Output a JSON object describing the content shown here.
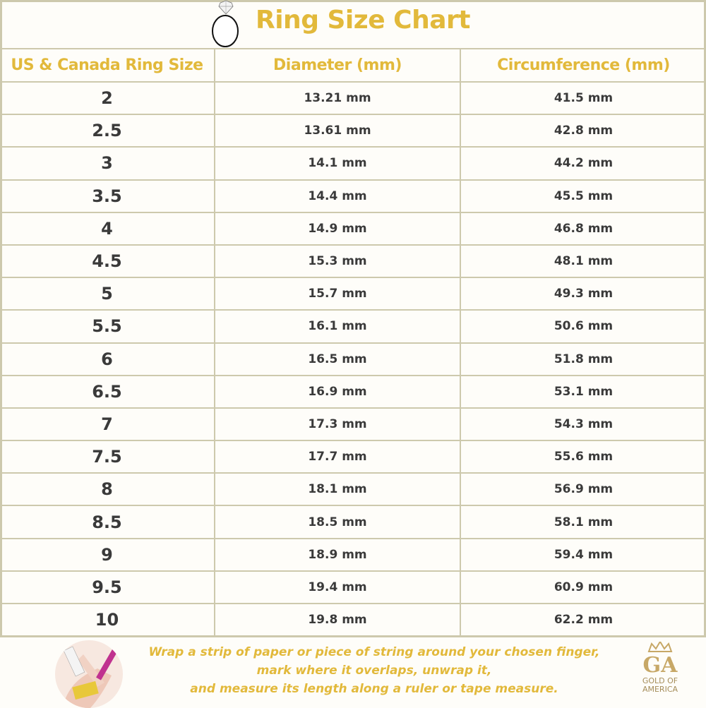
{
  "header": {
    "title": "Ring Size Chart",
    "icon": "ring-with-diamond-icon"
  },
  "table": {
    "columns": [
      "US & Canada Ring Size",
      "Diameter (mm)",
      "Circumference (mm)"
    ],
    "rows": [
      [
        "2",
        "13.21 mm",
        "41.5 mm"
      ],
      [
        "2.5",
        "13.61 mm",
        "42.8 mm"
      ],
      [
        "3",
        "14.1 mm",
        "44.2 mm"
      ],
      [
        "3.5",
        "14.4 mm",
        "45.5 mm"
      ],
      [
        "4",
        "14.9 mm",
        "46.8 mm"
      ],
      [
        "4.5",
        "15.3 mm",
        "48.1 mm"
      ],
      [
        "5",
        "15.7 mm",
        "49.3 mm"
      ],
      [
        "5.5",
        "16.1 mm",
        "50.6 mm"
      ],
      [
        "6",
        "16.5 mm",
        "51.8 mm"
      ],
      [
        "6.5",
        "16.9 mm",
        "53.1 mm"
      ],
      [
        "7",
        "17.3 mm",
        "54.3 mm"
      ],
      [
        "7.5",
        "17.7 mm",
        "55.6 mm"
      ],
      [
        "8",
        "18.1 mm",
        "56.9 mm"
      ],
      [
        "8.5",
        "18.5 mm",
        "58.1 mm"
      ],
      [
        "9",
        "18.9 mm",
        "59.4 mm"
      ],
      [
        "9.5",
        "19.4 mm",
        "60.9 mm"
      ],
      [
        "10",
        "19.8 mm",
        "62.2 mm"
      ]
    ]
  },
  "footer": {
    "instructions": [
      "Wrap a strip of paper or piece of string around your chosen finger,",
      "mark where it overlaps, unwrap it,",
      "and measure its length along a ruler or tape measure."
    ],
    "logo": {
      "monogram": "GA",
      "name_line1": "GOLD OF",
      "name_line2": "AMERICA"
    }
  },
  "colors": {
    "accent_gold": "#e2b93b",
    "grid": "#cdc9ad",
    "text": "#3a3a3a",
    "background": "#fefdf9"
  }
}
